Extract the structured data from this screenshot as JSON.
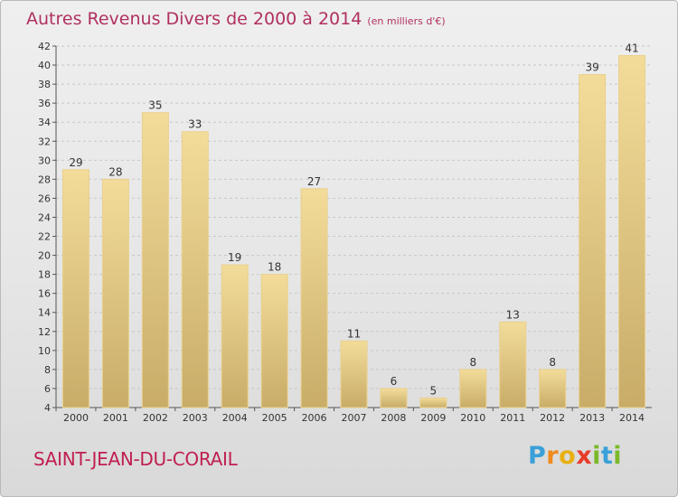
{
  "header": {
    "title": "Autres Revenus Divers de 2000 à 2014",
    "unit": "(en milliers d'€)"
  },
  "footer": {
    "commune": "SAINT-JEAN-DU-CORAIL",
    "brand_letters": [
      "P",
      "r",
      "o",
      "x",
      "i",
      "t",
      "i"
    ],
    "brand_colors": [
      "#3aa0d8",
      "#f08a1c",
      "#e8b010",
      "#e83a2a",
      "#7ab929",
      "#3aa0d8",
      "#7ab929"
    ]
  },
  "colors": {
    "bar_top": "#f3dc9a",
    "bar_bottom": "#c8ac68",
    "grid": "#c7c7c7",
    "title": "#b03060"
  },
  "chart_data": {
    "type": "bar",
    "categories": [
      "2000",
      "2001",
      "2002",
      "2003",
      "2004",
      "2005",
      "2006",
      "2007",
      "2008",
      "2009",
      "2010",
      "2011",
      "2012",
      "2013",
      "2014"
    ],
    "values": [
      29,
      28,
      35,
      33,
      19,
      18,
      27,
      11,
      6,
      5,
      8,
      13,
      8,
      39,
      41
    ],
    "title": "Autres Revenus Divers de 2000 à 2014",
    "xlabel": "",
    "ylabel": "",
    "ylim": [
      4,
      42
    ],
    "yticks": [
      4,
      6,
      8,
      10,
      12,
      14,
      16,
      18,
      20,
      22,
      24,
      26,
      28,
      30,
      32,
      34,
      36,
      38,
      40,
      42
    ],
    "grid": true,
    "legend": "none"
  }
}
